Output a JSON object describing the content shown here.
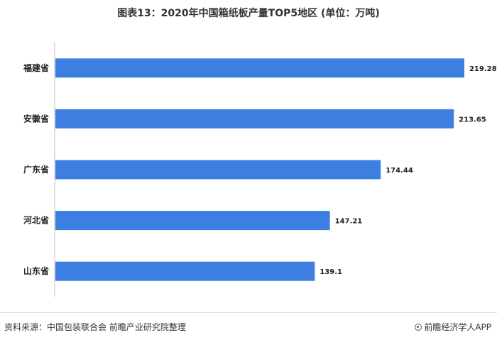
{
  "title": "图表13：2020年中国箱纸板产量TOP5地区 (单位：万吨)",
  "source": "资料来源：中国包装联合会 前瞻产业研究院整理",
  "brand": "前瞻经济学人APP",
  "colors": {
    "bar": "#3d7fe0",
    "axis": "#bfbfbf"
  },
  "chart_data": {
    "type": "bar",
    "orientation": "horizontal",
    "categories": [
      "福建省",
      "安徽省",
      "广东省",
      "河北省",
      "山东省"
    ],
    "values": [
      219.28,
      213.65,
      174.44,
      147.21,
      139.1
    ],
    "value_labels": [
      "219.28",
      "213.65",
      "174.44",
      "147.21",
      "139.1"
    ],
    "xlim": [
      0,
      225
    ],
    "grid": false,
    "legend": "none"
  }
}
